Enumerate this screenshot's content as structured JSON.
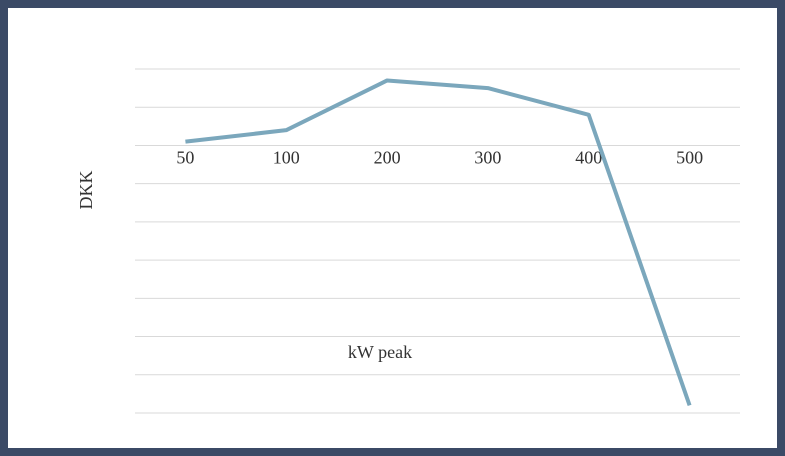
{
  "chart_data": {
    "type": "line",
    "x_label": "kW peak",
    "y_label": "DKK",
    "categories": [
      "50",
      "100",
      "200",
      "300",
      "400",
      "500"
    ],
    "series": [
      {
        "color": "#7ba7bc",
        "values": [
          0.1,
          0.4,
          1.7,
          1.5,
          0.8,
          -6.8
        ]
      }
    ],
    "ylim": [
      -7,
      2
    ],
    "yticks": [
      -7,
      -6,
      -5,
      -4,
      -3,
      -2,
      -1,
      0,
      1,
      2
    ],
    "grid": true
  }
}
